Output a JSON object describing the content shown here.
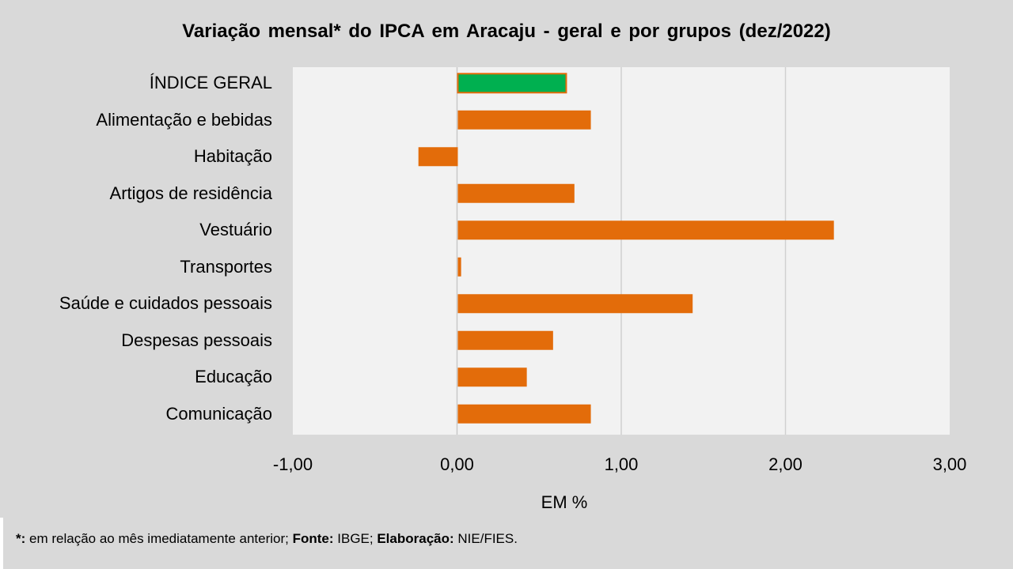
{
  "chart_data": {
    "type": "bar",
    "orientation": "horizontal",
    "title": "Variação mensal* do IPCA em Aracaju - geral e por grupos (dez/2022)",
    "categories": [
      "ÍNDICE GERAL",
      "Alimentação e bebidas",
      "Habitação",
      "Artigos de residência",
      "Vestuário",
      "Transportes",
      "Saúde e cuidados pessoais",
      "Despesas pessoais",
      "Educação",
      "Comunicação"
    ],
    "values": [
      0.66,
      0.81,
      -0.24,
      0.71,
      2.29,
      0.02,
      1.43,
      0.58,
      0.42,
      0.81
    ],
    "colors": [
      "#00b050",
      "#e36c0a",
      "#e36c0a",
      "#e36c0a",
      "#e36c0a",
      "#e36c0a",
      "#e36c0a",
      "#e36c0a",
      "#e36c0a",
      "#e36c0a"
    ],
    "xlabel": "EM %",
    "xlim": [
      -1,
      3
    ],
    "xticks": [
      -1,
      0,
      1,
      2,
      3
    ],
    "xtick_labels": [
      "-1,00",
      "0,00",
      "1,00",
      "2,00",
      "3,00"
    ],
    "grid": true
  },
  "footer": {
    "star": "*:",
    "note": " em relação ao mês imediatamente  anterior; ",
    "source_label": "Fonte:",
    "source": " IBGE; ",
    "elab_label": "Elaboração:",
    "elab": " NIE/FIES."
  }
}
